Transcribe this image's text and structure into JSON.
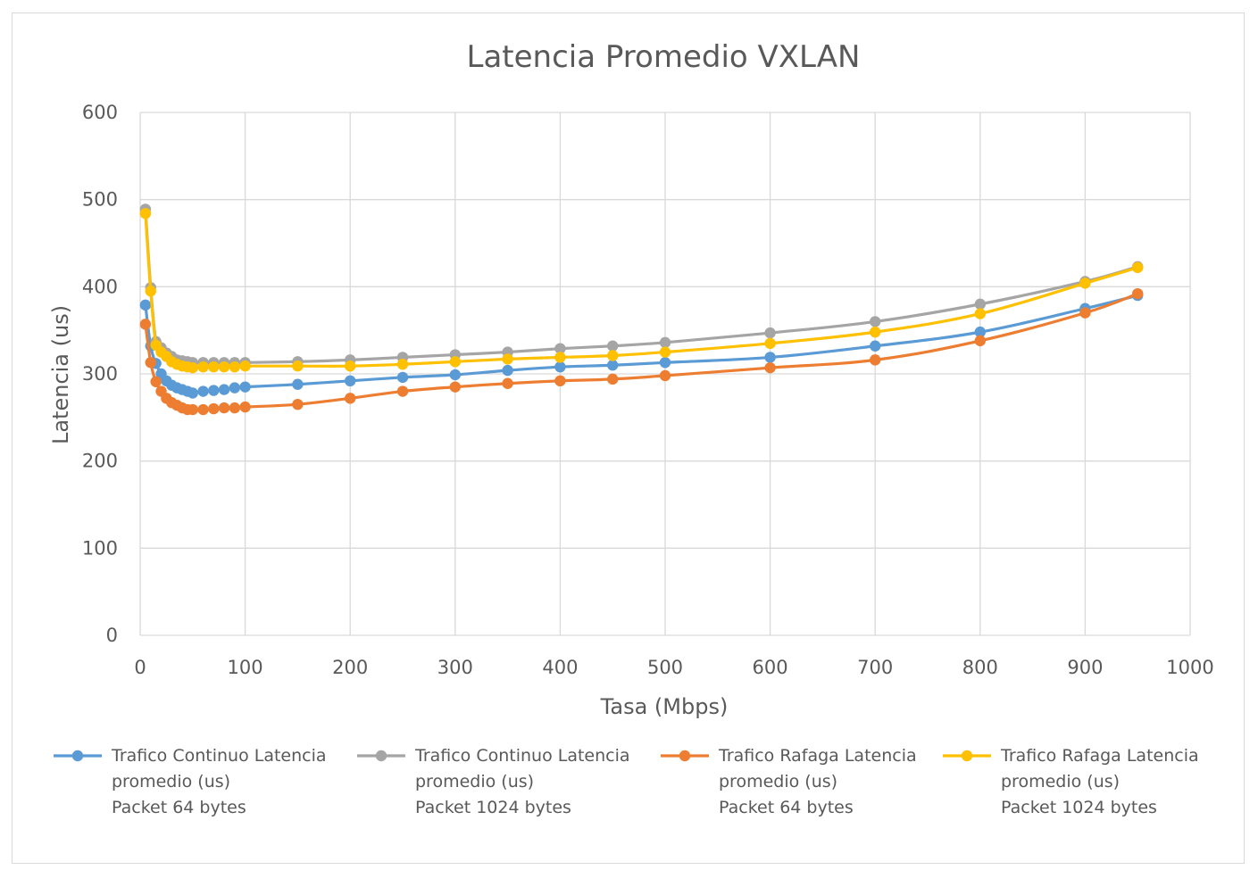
{
  "chart_data": {
    "type": "line",
    "title": "Latencia Promedio VXLAN",
    "xlabel": "Tasa (Mbps)",
    "ylabel": "Latencia (us)",
    "xlim": [
      0,
      1000
    ],
    "ylim": [
      0,
      600
    ],
    "x_ticks": [
      0,
      100,
      200,
      300,
      400,
      500,
      600,
      700,
      800,
      900,
      1000
    ],
    "y_ticks": [
      0,
      100,
      200,
      300,
      400,
      500,
      600
    ],
    "grid": true,
    "legend_position": "bottom",
    "series": [
      {
        "name": "Trafico Continuo Latencia promedio (us) Packet 64 bytes",
        "legend_lines": [
          "Trafico Continuo Latencia",
          "promedio (us)",
          "Packet 64 bytes"
        ],
        "color": "#5b9bd5",
        "points": [
          [
            5,
            379
          ],
          [
            10,
            332
          ],
          [
            15,
            312
          ],
          [
            20,
            300
          ],
          [
            25,
            292
          ],
          [
            30,
            287
          ],
          [
            35,
            284
          ],
          [
            40,
            282
          ],
          [
            45,
            280
          ],
          [
            50,
            278
          ],
          [
            60,
            280
          ],
          [
            70,
            281
          ],
          [
            80,
            282
          ],
          [
            90,
            284
          ],
          [
            100,
            285
          ],
          [
            150,
            288
          ],
          [
            200,
            292
          ],
          [
            250,
            296
          ],
          [
            300,
            299
          ],
          [
            350,
            304
          ],
          [
            400,
            308
          ],
          [
            450,
            310
          ],
          [
            500,
            313
          ],
          [
            600,
            319
          ],
          [
            700,
            332
          ],
          [
            800,
            348
          ],
          [
            900,
            375
          ],
          [
            950,
            390
          ]
        ]
      },
      {
        "name": "Trafico Continuo Latencia promedio (us) Packet 1024 bytes",
        "legend_lines": [
          "Trafico Continuo Latencia",
          "promedio (us)",
          "Packet 1024 bytes"
        ],
        "color": "#a5a5a5",
        "points": [
          [
            5,
            489
          ],
          [
            10,
            399
          ],
          [
            15,
            337
          ],
          [
            20,
            330
          ],
          [
            25,
            324
          ],
          [
            30,
            320
          ],
          [
            35,
            316
          ],
          [
            40,
            315
          ],
          [
            45,
            314
          ],
          [
            50,
            313
          ],
          [
            60,
            313
          ],
          [
            70,
            313
          ],
          [
            80,
            313
          ],
          [
            90,
            313
          ],
          [
            100,
            313
          ],
          [
            150,
            314
          ],
          [
            200,
            316
          ],
          [
            250,
            319
          ],
          [
            300,
            322
          ],
          [
            350,
            325
          ],
          [
            400,
            329
          ],
          [
            450,
            332
          ],
          [
            500,
            336
          ],
          [
            600,
            347
          ],
          [
            700,
            360
          ],
          [
            800,
            380
          ],
          [
            900,
            406
          ],
          [
            950,
            423
          ]
        ]
      },
      {
        "name": "Trafico Rafaga Latencia promedio (us) Packet 64 bytes",
        "legend_lines": [
          "Trafico Rafaga Latencia",
          "promedio (us)",
          "Packet 64 bytes"
        ],
        "color": "#ed7d31",
        "points": [
          [
            5,
            357
          ],
          [
            10,
            313
          ],
          [
            15,
            291
          ],
          [
            20,
            280
          ],
          [
            25,
            272
          ],
          [
            30,
            267
          ],
          [
            35,
            264
          ],
          [
            40,
            261
          ],
          [
            45,
            259
          ],
          [
            50,
            259
          ],
          [
            60,
            259
          ],
          [
            70,
            260
          ],
          [
            80,
            261
          ],
          [
            90,
            261
          ],
          [
            100,
            262
          ],
          [
            150,
            265
          ],
          [
            200,
            272
          ],
          [
            250,
            280
          ],
          [
            300,
            285
          ],
          [
            350,
            289
          ],
          [
            400,
            292
          ],
          [
            450,
            294
          ],
          [
            500,
            298
          ],
          [
            600,
            307
          ],
          [
            700,
            316
          ],
          [
            800,
            338
          ],
          [
            900,
            370
          ],
          [
            950,
            392
          ]
        ]
      },
      {
        "name": "Trafico Rafaga Latencia promedio (us) Packet 1024 bytes",
        "legend_lines": [
          "Trafico Rafaga Latencia",
          "promedio (us)",
          "Packet 1024 bytes"
        ],
        "color": "#ffc000",
        "points": [
          [
            5,
            484
          ],
          [
            10,
            395
          ],
          [
            15,
            333
          ],
          [
            20,
            325
          ],
          [
            25,
            320
          ],
          [
            30,
            314
          ],
          [
            35,
            311
          ],
          [
            40,
            309
          ],
          [
            45,
            308
          ],
          [
            50,
            307
          ],
          [
            60,
            308
          ],
          [
            70,
            308
          ],
          [
            80,
            308
          ],
          [
            90,
            308
          ],
          [
            100,
            309
          ],
          [
            150,
            309
          ],
          [
            200,
            309
          ],
          [
            250,
            311
          ],
          [
            300,
            314
          ],
          [
            350,
            317
          ],
          [
            400,
            319
          ],
          [
            450,
            321
          ],
          [
            500,
            325
          ],
          [
            600,
            335
          ],
          [
            700,
            348
          ],
          [
            800,
            369
          ],
          [
            900,
            404
          ],
          [
            950,
            422
          ]
        ]
      }
    ]
  }
}
